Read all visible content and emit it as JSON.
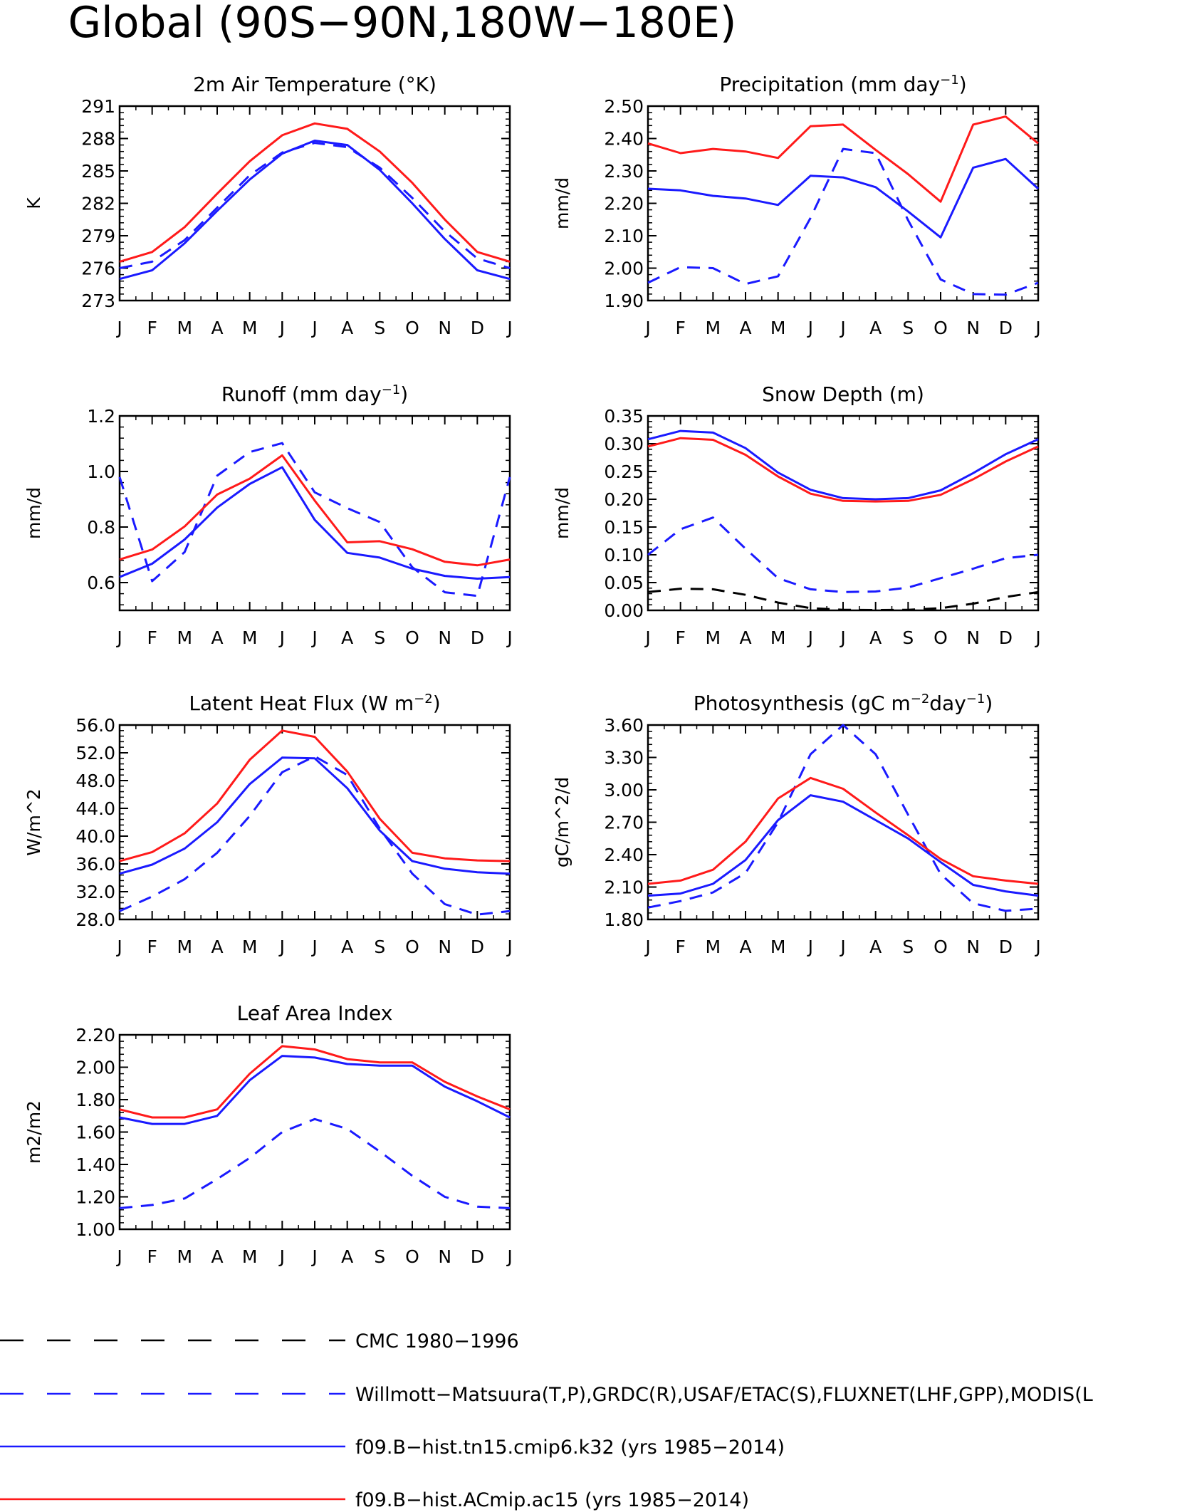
{
  "title": "Global (90S−90N,180W−180E)",
  "colors": {
    "obs_dashed_blue": "#1a1aff",
    "model_blue": "#1a1aff",
    "model_red": "#ff1a1a",
    "cmc_black": "#000000"
  },
  "months": [
    "J",
    "F",
    "M",
    "A",
    "M",
    "J",
    "J",
    "A",
    "S",
    "O",
    "N",
    "D",
    "J"
  ],
  "legend": [
    {
      "label": "CMC 1980−1996",
      "style": "dashed",
      "color": "#000000"
    },
    {
      "label": "Willmott−Matsuura(T,P),GRDC(R),USAF/ETAC(S),FLUXNET(LHF,GPP),MODIS(L",
      "style": "dashed",
      "color": "#1a1aff"
    },
    {
      "label": "f09.B−hist.tn15.cmip6.k32 (yrs 1985−2014)",
      "style": "solid",
      "color": "#1a1aff"
    },
    {
      "label": "f09.B−hist.ACmip.ac15 (yrs 1985−2014)",
      "style": "solid",
      "color": "#ff1a1a"
    }
  ],
  "chart_data": [
    {
      "type": "line",
      "title_parts": [
        "2m Air Temperature (°K)"
      ],
      "ylabel": "K",
      "ylim": [
        273,
        291
      ],
      "yticks": [
        "273",
        "276",
        "279",
        "282",
        "285",
        "288",
        "291"
      ],
      "x": [
        "J",
        "F",
        "M",
        "A",
        "M",
        "J",
        "J",
        "A",
        "S",
        "O",
        "N",
        "D",
        "J"
      ],
      "series": [
        {
          "style": "dashed",
          "color": "#1a1aff",
          "values": [
            276.0,
            276.6,
            278.6,
            281.6,
            284.6,
            286.7,
            287.6,
            287.2,
            285.3,
            282.5,
            279.4,
            276.9,
            276.0
          ]
        },
        {
          "style": "solid",
          "color": "#1a1aff",
          "values": [
            275.0,
            275.8,
            278.3,
            281.3,
            284.2,
            286.6,
            287.8,
            287.4,
            285.1,
            282.0,
            278.7,
            275.8,
            275.0
          ]
        },
        {
          "style": "solid",
          "color": "#ff1a1a",
          "values": [
            276.6,
            277.5,
            279.8,
            282.9,
            285.9,
            288.3,
            289.4,
            288.9,
            286.8,
            283.9,
            280.5,
            277.5,
            276.6
          ]
        }
      ]
    },
    {
      "type": "line",
      "title_parts": [
        "Precipitation (mm day",
        "−1",
        ")"
      ],
      "ylabel": "mm/d",
      "ylim": [
        1.9,
        2.5
      ],
      "yticks": [
        "1.90",
        "2.00",
        "2.10",
        "2.20",
        "2.30",
        "2.40",
        "2.50"
      ],
      "x": [
        "J",
        "F",
        "M",
        "A",
        "M",
        "J",
        "J",
        "A",
        "S",
        "O",
        "N",
        "D",
        "J"
      ],
      "series": [
        {
          "style": "dashed",
          "color": "#1a1aff",
          "values": [
            1.955,
            2.003,
            2.0,
            1.951,
            1.975,
            2.155,
            2.368,
            2.355,
            2.148,
            1.965,
            1.92,
            1.918,
            1.955
          ]
        },
        {
          "style": "solid",
          "color": "#1a1aff",
          "values": [
            2.245,
            2.24,
            2.223,
            2.215,
            2.195,
            2.285,
            2.28,
            2.25,
            2.175,
            2.095,
            2.31,
            2.337,
            2.245
          ]
        },
        {
          "style": "solid",
          "color": "#ff1a1a",
          "values": [
            2.385,
            2.355,
            2.368,
            2.36,
            2.34,
            2.438,
            2.443,
            2.365,
            2.29,
            2.205,
            2.443,
            2.468,
            2.385
          ]
        }
      ]
    },
    {
      "type": "line",
      "title_parts": [
        "Runoff (mm day",
        "−1",
        ")"
      ],
      "ylabel": "mm/d",
      "ylim": [
        0.5,
        1.2
      ],
      "yticks": [
        "0.6",
        "0.8",
        "1.0",
        "1.2"
      ],
      "x": [
        "J",
        "F",
        "M",
        "A",
        "M",
        "J",
        "J",
        "A",
        "S",
        "O",
        "N",
        "D",
        "J"
      ],
      "series": [
        {
          "style": "dashed",
          "color": "#1a1aff",
          "values": [
            0.98,
            0.605,
            0.71,
            0.985,
            1.07,
            1.102,
            0.925,
            0.868,
            0.818,
            0.655,
            0.565,
            0.552,
            0.98
          ]
        },
        {
          "style": "solid",
          "color": "#1a1aff",
          "values": [
            0.62,
            0.668,
            0.755,
            0.87,
            0.955,
            1.015,
            0.826,
            0.707,
            0.69,
            0.65,
            0.624,
            0.614,
            0.62
          ]
        },
        {
          "style": "solid",
          "color": "#ff1a1a",
          "values": [
            0.683,
            0.719,
            0.802,
            0.917,
            0.974,
            1.058,
            0.895,
            0.745,
            0.749,
            0.72,
            0.675,
            0.662,
            0.683
          ]
        }
      ]
    },
    {
      "type": "line",
      "title_parts": [
        "Snow Depth (m)"
      ],
      "ylabel": "mm/d",
      "ylim": [
        0.0,
        0.35
      ],
      "yticks": [
        "0.00",
        "0.05",
        "0.10",
        "0.15",
        "0.20",
        "0.25",
        "0.30",
        "0.35"
      ],
      "x": [
        "J",
        "F",
        "M",
        "A",
        "M",
        "J",
        "J",
        "A",
        "S",
        "O",
        "N",
        "D",
        "J"
      ],
      "series": [
        {
          "style": "dashed",
          "color": "#000000",
          "values": [
            0.033,
            0.039,
            0.038,
            0.028,
            0.014,
            0.004,
            0.001,
            0.0005,
            0.001,
            0.004,
            0.012,
            0.024,
            0.033
          ]
        },
        {
          "style": "dashed",
          "color": "#1a1aff",
          "values": [
            0.1,
            0.146,
            0.167,
            0.111,
            0.058,
            0.038,
            0.033,
            0.034,
            0.041,
            0.058,
            0.075,
            0.094,
            0.1
          ]
        },
        {
          "style": "solid",
          "color": "#1a1aff",
          "values": [
            0.308,
            0.323,
            0.32,
            0.292,
            0.248,
            0.217,
            0.202,
            0.2,
            0.202,
            0.216,
            0.247,
            0.281,
            0.308
          ]
        },
        {
          "style": "solid",
          "color": "#ff1a1a",
          "values": [
            0.295,
            0.31,
            0.307,
            0.28,
            0.241,
            0.21,
            0.197,
            0.196,
            0.197,
            0.208,
            0.236,
            0.268,
            0.295
          ]
        }
      ]
    },
    {
      "type": "line",
      "title_parts": [
        "Latent Heat Flux (W m",
        "−2",
        ")"
      ],
      "ylabel": "W/m^2",
      "ylim": [
        28,
        56
      ],
      "yticks": [
        "28.0",
        "32.0",
        "36.0",
        "40.0",
        "44.0",
        "48.0",
        "52.0",
        "56.0"
      ],
      "x": [
        "J",
        "F",
        "M",
        "A",
        "M",
        "J",
        "J",
        "A",
        "S",
        "O",
        "N",
        "D",
        "J"
      ],
      "series": [
        {
          "style": "dashed",
          "color": "#1a1aff",
          "values": [
            29.2,
            31.3,
            33.8,
            37.6,
            42.9,
            49.2,
            51.5,
            48.8,
            41.1,
            34.6,
            30.2,
            28.7,
            29.2
          ]
        },
        {
          "style": "solid",
          "color": "#1a1aff",
          "values": [
            34.6,
            35.9,
            38.2,
            42.0,
            47.5,
            51.3,
            51.2,
            46.9,
            40.8,
            36.4,
            35.3,
            34.8,
            34.6
          ]
        },
        {
          "style": "solid",
          "color": "#ff1a1a",
          "values": [
            36.4,
            37.7,
            40.4,
            44.7,
            51.0,
            55.2,
            54.3,
            49.3,
            42.5,
            37.6,
            36.8,
            36.5,
            36.4
          ]
        }
      ]
    },
    {
      "type": "line",
      "title_parts": [
        "Photosynthesis (gC m",
        "−2",
        "day",
        "−1",
        ")"
      ],
      "ylabel": "gC/m^2/d",
      "ylim": [
        1.8,
        3.6
      ],
      "yticks": [
        "1.80",
        "2.10",
        "2.40",
        "2.70",
        "3.00",
        "3.30",
        "3.60"
      ],
      "x": [
        "J",
        "F",
        "M",
        "A",
        "M",
        "J",
        "J",
        "A",
        "S",
        "O",
        "N",
        "D",
        "J"
      ],
      "series": [
        {
          "style": "dashed",
          "color": "#1a1aff",
          "values": [
            1.91,
            1.97,
            2.05,
            2.23,
            2.7,
            3.33,
            3.6,
            3.33,
            2.77,
            2.22,
            1.95,
            1.88,
            1.9
          ]
        },
        {
          "style": "solid",
          "color": "#1a1aff",
          "values": [
            2.02,
            2.04,
            2.13,
            2.35,
            2.72,
            2.95,
            2.89,
            2.72,
            2.55,
            2.33,
            2.12,
            2.06,
            2.02
          ]
        },
        {
          "style": "solid",
          "color": "#ff1a1a",
          "values": [
            2.13,
            2.16,
            2.26,
            2.52,
            2.92,
            3.11,
            3.01,
            2.79,
            2.58,
            2.36,
            2.2,
            2.16,
            2.13
          ]
        }
      ]
    },
    {
      "type": "line",
      "title_parts": [
        "Leaf Area Index"
      ],
      "ylabel": "m2/m2",
      "ylim": [
        1.0,
        2.2
      ],
      "yticks": [
        "1.00",
        "1.20",
        "1.40",
        "1.60",
        "1.80",
        "2.00",
        "2.20"
      ],
      "x": [
        "J",
        "F",
        "M",
        "A",
        "M",
        "J",
        "J",
        "A",
        "S",
        "O",
        "N",
        "D",
        "J"
      ],
      "series": [
        {
          "style": "dashed",
          "color": "#1a1aff",
          "values": [
            1.13,
            1.15,
            1.19,
            1.31,
            1.44,
            1.6,
            1.68,
            1.62,
            1.48,
            1.33,
            1.2,
            1.14,
            1.13
          ]
        },
        {
          "style": "solid",
          "color": "#1a1aff",
          "values": [
            1.69,
            1.65,
            1.65,
            1.7,
            1.92,
            2.07,
            2.06,
            2.02,
            2.01,
            2.01,
            1.88,
            1.79,
            1.69
          ]
        },
        {
          "style": "solid",
          "color": "#ff1a1a",
          "values": [
            1.74,
            1.69,
            1.69,
            1.74,
            1.96,
            2.13,
            2.11,
            2.05,
            2.03,
            2.03,
            1.91,
            1.82,
            1.74
          ]
        }
      ]
    }
  ]
}
